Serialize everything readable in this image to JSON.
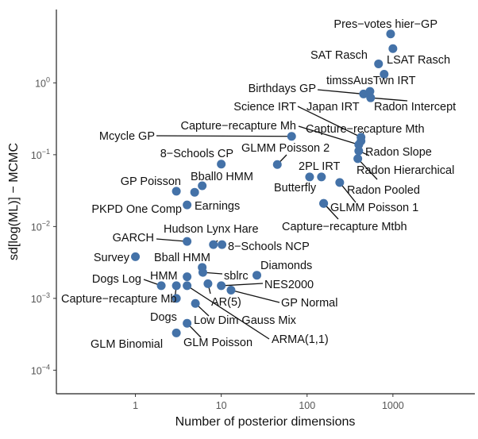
{
  "chart_data": {
    "type": "scatter",
    "title": "",
    "xlabel": "Number of posterior dimensions",
    "ylabel": "sd[log(ML)] − MCMC",
    "xscale": "log10",
    "yscale": "log10",
    "xlim": [
      0.12,
      9000
    ],
    "ylim": [
      4.7e-05,
      10.5
    ],
    "x_ticks": [
      {
        "value": 1,
        "label": "1"
      },
      {
        "value": 10,
        "label": "10"
      },
      {
        "value": 100,
        "label": "100"
      },
      {
        "value": 1000,
        "label": "1000"
      }
    ],
    "y_ticks": [
      {
        "value": 1,
        "base": "10",
        "exp": "0"
      },
      {
        "value": 0.1,
        "base": "10",
        "exp": "−1"
      },
      {
        "value": 0.01,
        "base": "10",
        "exp": "−2"
      },
      {
        "value": 0.001,
        "base": "10",
        "exp": "−3"
      },
      {
        "value": 0.0001,
        "base": "10",
        "exp": "−4"
      }
    ],
    "grid": false,
    "legend": "none",
    "point_color": "#4472a8",
    "points": [
      {
        "name": "Pres−votes hier−GP",
        "x": 940,
        "y": 4.8
      },
      {
        "name": "LSAT Rasch",
        "x": 1000,
        "y": 3.0
      },
      {
        "name": "SAT Rasch",
        "x": 680,
        "y": 1.84
      },
      {
        "name": "timssAusTwn IRT",
        "x": 790,
        "y": 1.32
      },
      {
        "name": "Birthdays GP",
        "x": 455,
        "y": 0.7
      },
      {
        "name": "Japan IRT",
        "x": 540,
        "y": 0.76
      },
      {
        "name": "Radon Intercept",
        "x": 550,
        "y": 0.62
      },
      {
        "name": "Science IRT",
        "x": 425,
        "y": 0.175
      },
      {
        "name": "Capture−recapture Mh",
        "x": 400,
        "y": 0.138
      },
      {
        "name": "Capture−recapture Mth",
        "x": 425,
        "y": 0.155
      },
      {
        "name": "Mcycle GP",
        "x": 66,
        "y": 0.18
      },
      {
        "name": "Radon Slope",
        "x": 400,
        "y": 0.113
      },
      {
        "name": "Radon Hierarchical",
        "x": 390,
        "y": 0.088
      },
      {
        "name": "GLMM Poisson 2",
        "x": 45,
        "y": 0.073
      },
      {
        "name": "8−Schools CP",
        "x": 10,
        "y": 0.074
      },
      {
        "name": "2PL IRT",
        "x": 147,
        "y": 0.049
      },
      {
        "name": "Butterfly",
        "x": 107,
        "y": 0.049
      },
      {
        "name": "Radon Pooled",
        "x": 240,
        "y": 0.041
      },
      {
        "name": "GLMM Poisson 1",
        "x": 156,
        "y": 0.021
      },
      {
        "name": "Capture−recapture Mtbh",
        "x": 156,
        "y": 0.021
      },
      {
        "name": "GP Poisson",
        "x": 3.0,
        "y": 0.031
      },
      {
        "name": "Earnings",
        "x": 4.9,
        "y": 0.03
      },
      {
        "name": "Bball0 HMM",
        "x": 6.0,
        "y": 0.037
      },
      {
        "name": "PKPD One Comp",
        "x": 4.0,
        "y": 0.02
      },
      {
        "name": "GARCH",
        "x": 4.0,
        "y": 0.0062
      },
      {
        "name": "Hudson Lynx Hare",
        "x": 8.1,
        "y": 0.0056
      },
      {
        "name": "8−Schools NCP",
        "x": 10.2,
        "y": 0.0056
      },
      {
        "name": "Survey",
        "x": 1.0,
        "y": 0.0038
      },
      {
        "name": "Bball HMM",
        "x": 6.0,
        "y": 0.0027
      },
      {
        "name": "sblrc",
        "x": 6.1,
        "y": 0.0023
      },
      {
        "name": "Diamonds",
        "x": 26,
        "y": 0.0021
      },
      {
        "name": "HMM",
        "x": 4.0,
        "y": 0.002
      },
      {
        "name": "Dogs Log",
        "x": 2.0,
        "y": 0.0015
      },
      {
        "name": "Dogs",
        "x": 3.0,
        "y": 0.0015
      },
      {
        "name": "ARMA(1,1)",
        "x": 4.0,
        "y": 0.0015
      },
      {
        "name": "AR(5)",
        "x": 7.0,
        "y": 0.0016
      },
      {
        "name": "NES2000",
        "x": 10,
        "y": 0.0015
      },
      {
        "name": "GP Normal",
        "x": 13,
        "y": 0.0013
      },
      {
        "name": "Capture−recapture Mb",
        "x": 3.0,
        "y": 0.001
      },
      {
        "name": "Low Dim Gauss Mix",
        "x": 5.0,
        "y": 0.00085
      },
      {
        "name": "GLM Poisson",
        "x": 4.0,
        "y": 0.00045
      },
      {
        "name": "GLM Binomial",
        "x": 3.0,
        "y": 0.00033
      }
    ]
  }
}
